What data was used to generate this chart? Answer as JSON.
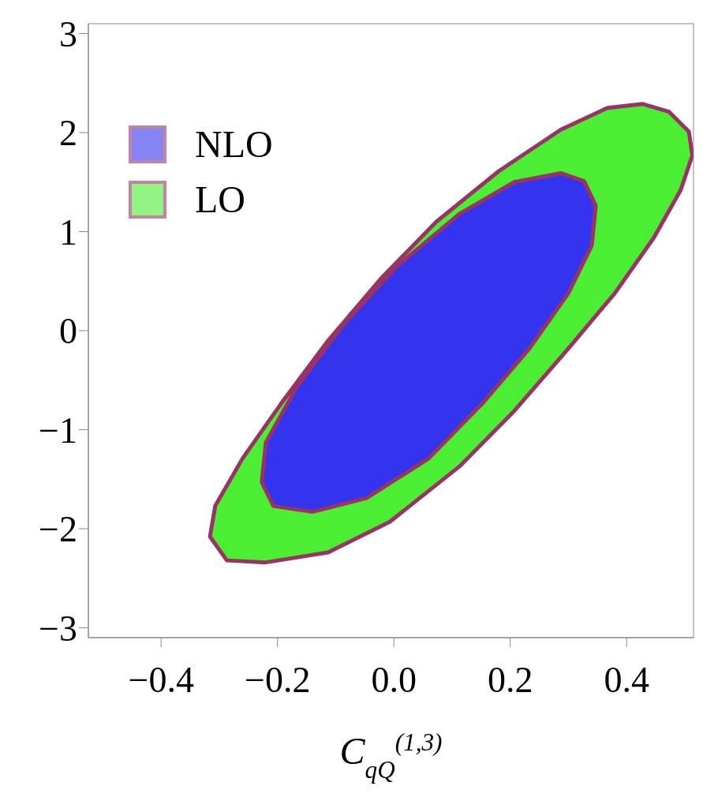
{
  "chart_data": {
    "type": "area",
    "xlabel": "C$_{qQ}$$^{(1,3)}$",
    "xlim": [
      -0.525,
      0.515
    ],
    "ylim": [
      -3.1,
      3.1
    ],
    "xticks": [
      {
        "value": -0.4,
        "label": "−0.4"
      },
      {
        "value": -0.2,
        "label": "−0.2"
      },
      {
        "value": 0,
        "label": "0.0"
      },
      0.2,
      0.4
    ],
    "yticks": [
      {
        "value": -3,
        "label": "−3"
      },
      {
        "value": -2,
        "label": "−2"
      },
      {
        "value": -1,
        "label": "−1"
      },
      0,
      1,
      2,
      3
    ],
    "grid": false,
    "legend": "top left",
    "marker": "none",
    "series": [
      {
        "name": "LO",
        "color": "#4cee33",
        "x": [
          0.427,
          0.473,
          0.507,
          0.513,
          0.493,
          0.447,
          0.38,
          0.3,
          0.207,
          0.113,
          -0.007,
          -0.113,
          -0.22,
          -0.287,
          -0.316,
          -0.307,
          -0.26,
          -0.193,
          -0.113,
          -0.02,
          0.073,
          0.18,
          0.287,
          0.367,
          0.427
        ],
        "values": [
          2.29,
          2.21,
          2.01,
          1.77,
          1.42,
          0.94,
          0.38,
          -0.18,
          -0.81,
          -1.37,
          -1.93,
          -2.24,
          -2.34,
          -2.32,
          -2.08,
          -1.77,
          -1.29,
          -0.73,
          -0.1,
          0.54,
          1.1,
          1.61,
          2.03,
          2.25,
          2.29
        ]
      },
      {
        "name": "NLO",
        "color": "#3434ee",
        "x": [
          0.287,
          0.327,
          0.347,
          0.34,
          0.3,
          0.233,
          0.153,
          0.06,
          -0.047,
          -0.14,
          -0.207,
          -0.227,
          -0.22,
          -0.167,
          -0.087,
          0.007,
          0.113,
          0.207,
          0.287
        ],
        "values": [
          1.59,
          1.51,
          1.26,
          0.86,
          0.38,
          -0.18,
          -0.73,
          -1.29,
          -1.69,
          -1.83,
          -1.77,
          -1.53,
          -1.13,
          -0.57,
          0.06,
          0.66,
          1.18,
          1.5,
          1.59
        ]
      }
    ]
  }
}
